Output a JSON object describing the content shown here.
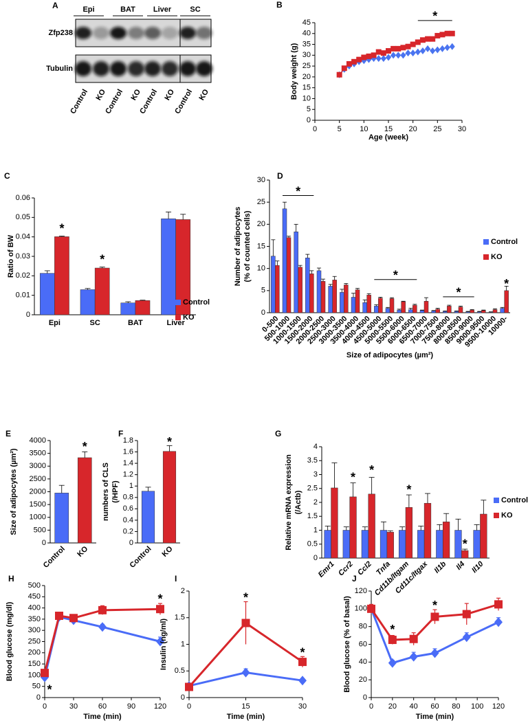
{
  "blot": {
    "panel": "A",
    "columns": [
      "Epi",
      "BAT",
      "Liver",
      "SC"
    ],
    "rows": [
      "Zfp238",
      "Tubulin"
    ],
    "lanes": [
      "Control",
      "KO",
      "Control",
      "KO",
      "Control",
      "KO",
      "Control",
      "KO"
    ]
  },
  "chart_data": [
    {
      "panel": "B",
      "type": "line",
      "xlabel": "Age (week)",
      "ylabel": "Body weight (g)",
      "xlim": [
        0,
        30
      ],
      "xticks": [
        0,
        5,
        10,
        15,
        20,
        25,
        30
      ],
      "ylim": [
        0,
        45
      ],
      "yticks": [
        0,
        5,
        10,
        15,
        20,
        25,
        30,
        35,
        40,
        45
      ],
      "x": [
        5,
        6,
        7,
        8,
        9,
        10,
        11,
        12,
        13,
        14,
        15,
        16,
        17,
        18,
        19,
        20,
        21,
        22,
        23,
        24,
        25,
        26,
        27,
        28
      ],
      "series": [
        {
          "color": "#4a74f0",
          "marker": "diamond",
          "values": [
            21,
            23.5,
            25,
            26,
            27,
            27.5,
            28,
            28.5,
            28.5,
            28.5,
            29,
            30,
            30,
            30,
            31,
            31,
            31.5,
            32,
            33,
            32,
            32.5,
            33,
            33.5,
            34
          ]
        },
        {
          "color": "#d7262b",
          "marker": "square",
          "values": [
            21,
            24,
            26,
            27,
            28,
            29,
            29.5,
            30,
            31.5,
            31,
            32,
            33,
            33,
            33.5,
            34,
            35,
            36,
            37,
            37.5,
            37.5,
            39,
            39.5,
            40,
            40
          ]
        }
      ],
      "annotations": [
        {
          "text": "*",
          "x": [
            21,
            28
          ],
          "y": 46
        }
      ]
    },
    {
      "panel": "C",
      "type": "bar",
      "ylabel": "Ratio of BW",
      "categories": [
        "Epi",
        "SC",
        "BAT",
        "Liver"
      ],
      "ylim": [
        0,
        0.06
      ],
      "yticks": [
        0,
        0.01,
        0.02,
        0.03,
        0.04,
        0.05,
        0.06
      ],
      "legend": "lower right",
      "series": [
        {
          "name": "Control",
          "color": "#4a6cf7",
          "values": [
            0.0213,
            0.0129,
            0.0061,
            0.0493
          ],
          "errors": [
            0.0013,
            0.0006,
            0.0006,
            0.0035
          ]
        },
        {
          "name": "KO",
          "color": "#d7262b",
          "values": [
            0.0401,
            0.024,
            0.0073,
            0.0489
          ],
          "errors": [
            0.0003,
            0.0005,
            0.0002,
            0.0027
          ]
        }
      ],
      "annotations": [
        {
          "text": "*",
          "category": "Epi",
          "series": "KO",
          "y": 0.045
        },
        {
          "text": "*",
          "category": "SC",
          "series": "KO",
          "y": 0.029
        }
      ]
    },
    {
      "panel": "D",
      "type": "bar",
      "xlabel": "Size of adipocytes (µm²)",
      "ylabel": [
        "Number of adipocytes",
        "(% of counted cells)"
      ],
      "categories": [
        "0-500",
        "500-1000",
        "1000-1500",
        "1500-2000",
        "2000-2500",
        "2500-3000",
        "3000-3500",
        "3500-4000",
        "4000-4500",
        "4500-5000",
        "5000-5500",
        "5500-6000",
        "6000-6500",
        "6500-7000",
        "7000-7500",
        "7500-8000",
        "8000-8500",
        "8500-9000",
        "9000-9500",
        "9500-10000",
        "10000-"
      ],
      "ylim": [
        0,
        30
      ],
      "yticks": [
        0,
        5,
        10,
        15,
        20,
        25,
        30
      ],
      "legend": "right",
      "series": [
        {
          "name": "Control",
          "color": "#4a6cf7",
          "values": [
            12.8,
            23.5,
            18.3,
            12.4,
            9.5,
            6.0,
            4.6,
            3.5,
            2.3,
            1.5,
            1.0,
            0.6,
            0.7,
            0.5,
            0.4,
            0.3,
            0.3,
            0.2,
            0.2,
            0.1,
            1.0
          ],
          "errors": [
            3.7,
            1.5,
            1.7,
            0.8,
            0.6,
            0.4,
            0.7,
            0.9,
            0.6,
            0.3,
            0.2,
            0.2,
            0.3,
            0.1,
            0.1,
            0.1,
            0.1,
            0.1,
            0.1,
            0.1,
            0.2
          ]
        },
        {
          "name": "KO",
          "color": "#d7262b",
          "values": [
            10.7,
            17.0,
            10.3,
            8.8,
            7.1,
            7.4,
            6.3,
            5.2,
            4.0,
            3.3,
            3.2,
            2.5,
            1.7,
            2.6,
            0.8,
            1.5,
            1.3,
            0.6,
            0.5,
            0.7,
            5.0
          ],
          "errors": [
            1.0,
            0.3,
            0.4,
            0.7,
            0.5,
            0.8,
            0.3,
            0.3,
            0.3,
            0.2,
            0.2,
            0.1,
            0.2,
            0.8,
            0.2,
            0.2,
            0.2,
            0.1,
            0.1,
            0.2,
            1.0
          ]
        }
      ],
      "annotations": [
        {
          "text": "*",
          "category": [
            "500-1000",
            "1500-2000"
          ],
          "y": 26.5
        },
        {
          "text": "*",
          "category": [
            "4500-5000",
            "6000-6500"
          ],
          "y": 7.5
        },
        {
          "text": "*",
          "category": [
            "7500-8000",
            "8500-9000"
          ],
          "y": 3.6
        },
        {
          "text": "*",
          "category": "10000-",
          "series": "KO",
          "y": 6.8
        }
      ]
    },
    {
      "panel": "E",
      "type": "bar",
      "ylabel": "Size of adipocytes (µm²)",
      "categories": [
        "Control",
        "KO"
      ],
      "values": [
        1950,
        3330
      ],
      "errors": [
        300,
        230
      ],
      "colors": [
        "#4a6cf7",
        "#d7262b"
      ],
      "ylim": [
        0,
        4000
      ],
      "yticks": [
        0,
        500,
        1000,
        1500,
        2000,
        2500,
        3000,
        3500,
        4000
      ],
      "annotations": [
        {
          "text": "*",
          "category": "KO",
          "y": 3800
        }
      ]
    },
    {
      "panel": "F",
      "type": "bar",
      "ylabel": [
        "numbers of CLS",
        "(/HPF)"
      ],
      "categories": [
        "Control",
        "KO"
      ],
      "values": [
        0.91,
        1.61
      ],
      "errors": [
        0.07,
        0.1
      ],
      "colors": [
        "#4a6cf7",
        "#d7262b"
      ],
      "ylim": [
        0,
        1.8
      ],
      "yticks": [
        0,
        0.2,
        0.4,
        0.6,
        0.8,
        1,
        1.2,
        1.4,
        1.6,
        1.8
      ],
      "annotations": [
        {
          "text": "*",
          "category": "KO",
          "y": 1.8
        }
      ]
    },
    {
      "panel": "G",
      "type": "bar",
      "ylabel": [
        "Relative mRNA  expression",
        "(/Actb)"
      ],
      "categories": [
        "Emr1",
        "Ccr2",
        "Ccl2",
        "Tnfa",
        "Cd11b/Itgam",
        "Cd11c/Itgax",
        "Il1b",
        "Il4",
        "Il10"
      ],
      "ylim": [
        0,
        4
      ],
      "yticks": [
        0,
        0.5,
        1,
        1.5,
        2,
        2.5,
        3,
        3.5,
        4
      ],
      "legend": "right",
      "series": [
        {
          "name": "Control",
          "color": "#4a6cf7",
          "values": [
            1.0,
            1.0,
            1.0,
            1.0,
            1.0,
            1.0,
            1.0,
            1.0,
            1.0
          ],
          "errors": [
            0.15,
            0.12,
            0.12,
            0.3,
            0.12,
            0.15,
            0.2,
            0.4,
            0.2
          ]
        },
        {
          "name": "KO",
          "color": "#d7262b",
          "values": [
            2.52,
            2.2,
            2.3,
            0.93,
            1.82,
            1.97,
            1.3,
            0.27,
            1.58
          ],
          "errors": [
            0.9,
            0.5,
            0.6,
            0.05,
            0.45,
            0.35,
            0.3,
            0.05,
            0.5
          ]
        }
      ],
      "annotations": [
        {
          "text": "*",
          "category": "Ccr2",
          "series": "KO",
          "y": 2.95
        },
        {
          "text": "*",
          "category": "Ccl2",
          "series": "KO",
          "y": 3.2
        },
        {
          "text": "*",
          "category": "Cd11b/Itgam",
          "series": "KO",
          "y": 2.5
        },
        {
          "text": "*",
          "category": "Il4",
          "series": "KO",
          "y": 0.55
        }
      ]
    },
    {
      "panel": "H",
      "type": "line",
      "xlabel": "Time (min)",
      "ylabel": "Blood glucose (mg/dl)",
      "xlim": [
        0,
        120
      ],
      "xticks": [
        0,
        30,
        60,
        90,
        120
      ],
      "ylim": [
        0,
        500
      ],
      "yticks": [
        0,
        50,
        100,
        150,
        200,
        250,
        300,
        350,
        400,
        450,
        500
      ],
      "x": [
        0,
        15,
        30,
        60,
        120
      ],
      "series": [
        {
          "color": "#4a6cf7",
          "marker": "diamond",
          "values": [
            90,
            360,
            345,
            315,
            250
          ],
          "errors": [
            8,
            10,
            12,
            12,
            20
          ]
        },
        {
          "color": "#d7262b",
          "marker": "square",
          "values": [
            110,
            365,
            355,
            390,
            395
          ],
          "errors": [
            10,
            10,
            12,
            20,
            25
          ]
        }
      ],
      "annotations": [
        {
          "text": "*",
          "x": 5,
          "y": 40
        },
        {
          "text": "*",
          "x": 120,
          "y": 445
        }
      ]
    },
    {
      "panel": "I",
      "type": "line",
      "xlabel": "Time (min)",
      "ylabel": "Insulin (ng/ml)",
      "xlim": [
        0,
        30
      ],
      "xticks": [
        0,
        15,
        30
      ],
      "ylim": [
        0,
        2
      ],
      "yticks": [
        0,
        0.5,
        1,
        1.5,
        2
      ],
      "x": [
        0,
        15,
        30
      ],
      "series": [
        {
          "color": "#4a6cf7",
          "marker": "diamond",
          "values": [
            0.22,
            0.47,
            0.32
          ],
          "errors": [
            0.03,
            0.07,
            0.04
          ]
        },
        {
          "color": "#d7262b",
          "marker": "square",
          "values": [
            0.2,
            1.4,
            0.67
          ],
          "errors": [
            0.03,
            0.4,
            0.1
          ]
        }
      ],
      "annotations": [
        {
          "text": "*",
          "x": 15,
          "y": 1.9
        },
        {
          "text": "*",
          "x": 30,
          "y": 0.87
        }
      ]
    },
    {
      "panel": "J",
      "type": "line",
      "xlabel": "Time (min)",
      "ylabel": "Blood glucose (% of basal)",
      "xlim": [
        0,
        120
      ],
      "xticks": [
        0,
        20,
        40,
        60,
        80,
        100,
        120
      ],
      "ylim": [
        0,
        120
      ],
      "yticks": [
        0,
        20,
        40,
        60,
        80,
        100,
        120
      ],
      "x": [
        0,
        20,
        40,
        60,
        90,
        120
      ],
      "series": [
        {
          "color": "#4a6cf7",
          "marker": "diamond",
          "values": [
            100,
            39,
            46,
            50,
            68,
            85
          ],
          "errors": [
            0,
            3,
            5,
            5,
            5,
            5
          ]
        },
        {
          "color": "#d7262b",
          "marker": "square",
          "values": [
            100,
            65,
            66,
            91,
            94,
            105
          ],
          "errors": [
            5,
            5,
            7,
            8,
            12,
            7
          ]
        }
      ],
      "annotations": [
        {
          "text": "*",
          "x": 20,
          "y": 78
        },
        {
          "text": "*",
          "x": 60,
          "y": 105
        }
      ]
    }
  ]
}
